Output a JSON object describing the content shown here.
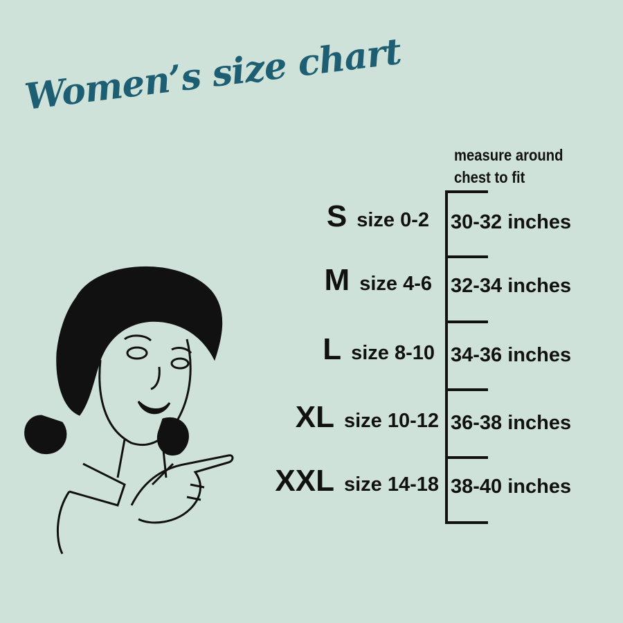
{
  "title": "Women’s size chart",
  "header": {
    "line1": "measure around",
    "line2": "chest to fit"
  },
  "colors": {
    "background": "#cfe2d9",
    "title": "#1d5e72",
    "text": "#111111"
  },
  "illustration": "retro-woman-pointing",
  "rows": [
    {
      "letter": "S",
      "size": "size 0-2",
      "measure": "30-32 inches"
    },
    {
      "letter": "M",
      "size": "size 4-6",
      "measure": "32-34 inches"
    },
    {
      "letter": "L",
      "size": "size 8-10",
      "measure": "34-36 inches"
    },
    {
      "letter": "XL",
      "size": "size 10-12",
      "measure": "36-38 inches"
    },
    {
      "letter": "XXL",
      "size": "size 14-18",
      "measure": "38-40 inches"
    }
  ]
}
